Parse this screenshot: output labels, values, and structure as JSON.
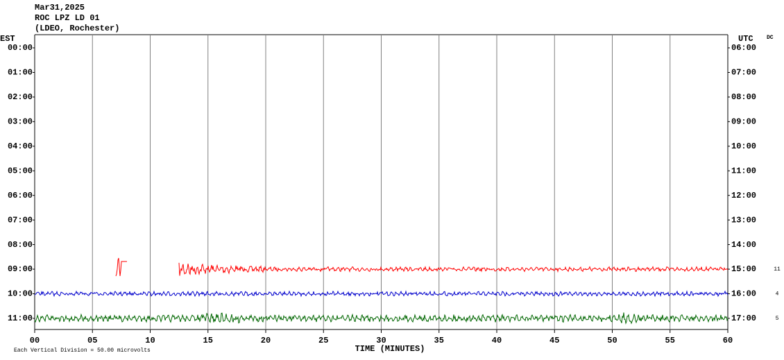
{
  "chart_data": {
    "type": "helicorder",
    "title": [
      "Mar31,2025",
      "ROC LPZ LD 01",
      "(LDEO, Rochester)"
    ],
    "left_axis_label": "EST",
    "right_axis_label": "UTC",
    "corner_label": "DC",
    "rows": [
      "00:00",
      "01:00",
      "02:00",
      "03:00",
      "04:00",
      "05:00",
      "06:00",
      "07:00",
      "08:00",
      "09:00",
      "10:00",
      "11:00"
    ],
    "rows_utc": [
      "06:00",
      "07:00",
      "08:00",
      "09:00",
      "10:00",
      "11:00",
      "12:00",
      "13:00",
      "14:00",
      "15:00",
      "16:00",
      "17:00"
    ],
    "trace_colors": [
      null,
      null,
      null,
      null,
      null,
      null,
      null,
      null,
      null,
      "#ff0000",
      "#0000cc",
      "#006600"
    ],
    "counts": [
      null,
      null,
      null,
      null,
      null,
      null,
      null,
      null,
      null,
      11,
      4,
      5
    ],
    "xlabel": "TIME (MINUTES)",
    "xlim": [
      0,
      60
    ],
    "xticks": [
      {
        "value": 0,
        "label": "00"
      },
      {
        "value": 5,
        "label": "05"
      },
      10,
      15,
      20,
      25,
      30,
      35,
      40,
      45,
      50,
      55,
      60
    ],
    "grid": true,
    "grid_color": "#808080",
    "footer": "Each Vertical Division =   50.00 microvolts"
  }
}
